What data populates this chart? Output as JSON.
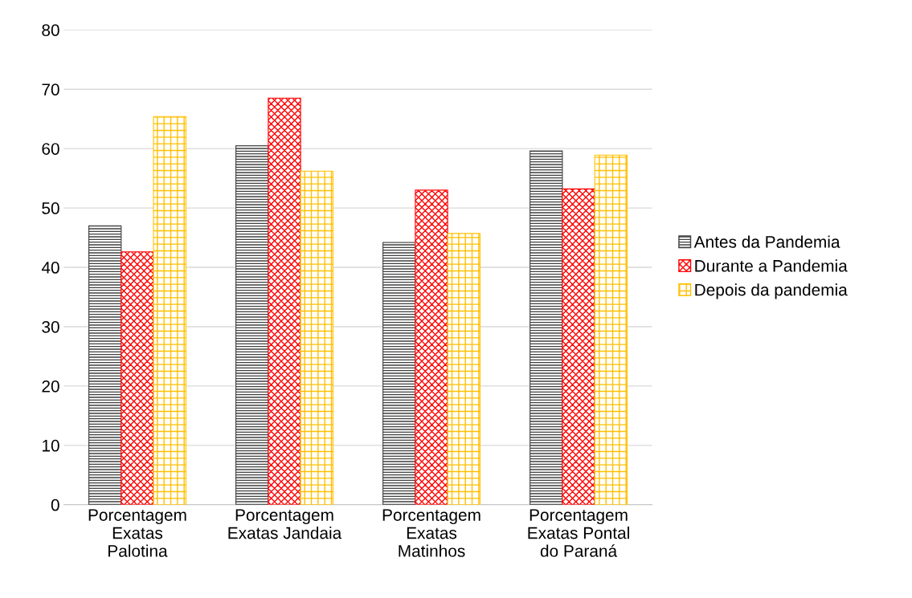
{
  "chart_data": {
    "type": "bar",
    "categories": [
      "Porcentagem\nExatas\nPalotina",
      "Porcentagem\nExatas Jandaia",
      "Porcentagem\nExatas\nMatinhos",
      "Porcentagem\nExatas Pontal\ndo Paraná"
    ],
    "series": [
      {
        "name": "Antes da Pandemia",
        "color": "#404040",
        "values": [
          47.0,
          60.5,
          44.2,
          59.6
        ]
      },
      {
        "name": "Durante a Pandemia",
        "color": "#ff0000",
        "values": [
          42.6,
          68.5,
          53.0,
          53.2
        ]
      },
      {
        "name": "Depois da pandemia",
        "color": "#ffc000",
        "values": [
          65.4,
          56.2,
          45.7,
          58.9
        ]
      }
    ],
    "ylim": [
      0,
      80
    ],
    "yticks": [
      0,
      10,
      20,
      30,
      40,
      50,
      60,
      70,
      80
    ],
    "grid": "y",
    "legend": "right"
  }
}
